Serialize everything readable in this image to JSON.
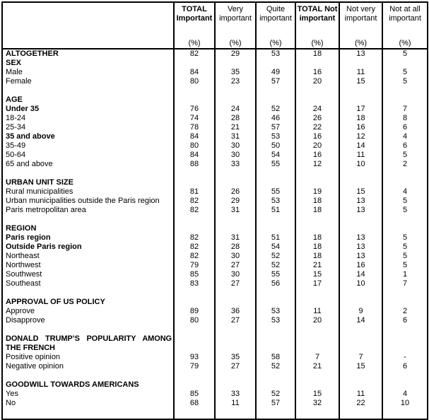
{
  "colors": {
    "border": "#000000",
    "text": "#000000",
    "background": "#ffffff"
  },
  "table": {
    "percent_label": "(%)",
    "columns": [
      {
        "label": "TOTAL Important",
        "bold": true
      },
      {
        "label": "Very important",
        "bold": false
      },
      {
        "label": "Quite important",
        "bold": false
      },
      {
        "label": "TOTAL Not important",
        "bold": true
      },
      {
        "label": "Not very important",
        "bold": false
      },
      {
        "label": "Not at all important",
        "bold": false
      }
    ],
    "rows": [
      {
        "label": "ALTOGETHER",
        "bold": true,
        "values": [
          82,
          29,
          53,
          18,
          13,
          5
        ]
      },
      {
        "label": "SEX",
        "bold": true,
        "values": null
      },
      {
        "label": "Male",
        "bold": false,
        "values": [
          84,
          35,
          49,
          16,
          11,
          5
        ]
      },
      {
        "label": "Female",
        "bold": false,
        "values": [
          80,
          23,
          57,
          20,
          15,
          5
        ]
      },
      {
        "blank": true
      },
      {
        "label": "AGE",
        "bold": true,
        "values": null
      },
      {
        "label": "Under 35",
        "bold": true,
        "values": [
          76,
          24,
          52,
          24,
          17,
          7
        ]
      },
      {
        "label": "18-24",
        "bold": false,
        "values": [
          74,
          28,
          46,
          26,
          18,
          8
        ]
      },
      {
        "label": "25-34",
        "bold": false,
        "values": [
          78,
          21,
          57,
          22,
          16,
          6
        ]
      },
      {
        "label": "35 and above",
        "bold": true,
        "values": [
          84,
          31,
          53,
          16,
          12,
          4
        ]
      },
      {
        "label": "35-49",
        "bold": false,
        "values": [
          80,
          30,
          50,
          20,
          14,
          6
        ]
      },
      {
        "label": "50-64",
        "bold": false,
        "values": [
          84,
          30,
          54,
          16,
          11,
          5
        ]
      },
      {
        "label": "65 and above",
        "bold": false,
        "values": [
          88,
          33,
          55,
          12,
          10,
          2
        ]
      },
      {
        "blank": true
      },
      {
        "label": "URBAN UNIT SIZE",
        "bold": true,
        "values": null
      },
      {
        "label": "Rural municipalities",
        "bold": false,
        "values": [
          81,
          26,
          55,
          19,
          15,
          4
        ]
      },
      {
        "label": "Urban municipalities outside the Paris region",
        "bold": false,
        "values": [
          82,
          29,
          53,
          18,
          13,
          5
        ]
      },
      {
        "label": "Paris metropolitan area",
        "bold": false,
        "values": [
          82,
          31,
          51,
          18,
          13,
          5
        ]
      },
      {
        "blank": true
      },
      {
        "label": "REGION",
        "bold": true,
        "values": null
      },
      {
        "label": "Paris region",
        "bold": true,
        "values": [
          82,
          31,
          51,
          18,
          13,
          5
        ]
      },
      {
        "label": "Outside Paris region",
        "bold": true,
        "values": [
          82,
          28,
          54,
          18,
          13,
          5
        ]
      },
      {
        "label": "Northeast",
        "bold": false,
        "values": [
          82,
          30,
          52,
          18,
          13,
          5
        ]
      },
      {
        "label": "Northwest",
        "bold": false,
        "values": [
          79,
          27,
          52,
          21,
          16,
          5
        ]
      },
      {
        "label": "Southwest",
        "bold": false,
        "values": [
          85,
          30,
          55,
          15,
          14,
          1
        ]
      },
      {
        "label": "Southeast",
        "bold": false,
        "values": [
          83,
          27,
          56,
          17,
          10,
          7
        ]
      },
      {
        "blank": true
      },
      {
        "label": "APPROVAL OF US POLICY",
        "bold": true,
        "values": null
      },
      {
        "label": "Approve",
        "bold": false,
        "values": [
          89,
          36,
          53,
          11,
          9,
          2
        ]
      },
      {
        "label": "Disapprove",
        "bold": false,
        "values": [
          80,
          27,
          53,
          20,
          14,
          6
        ]
      },
      {
        "blank": true
      },
      {
        "label": "DONALD TRUMP’S POPULARITY AMONG THE FRENCH",
        "bold": true,
        "values": null,
        "wrap": true
      },
      {
        "label": "Positive opinion",
        "bold": false,
        "values": [
          93,
          35,
          58,
          7,
          7,
          "-"
        ]
      },
      {
        "label": "Negative opinion",
        "bold": false,
        "values": [
          79,
          27,
          52,
          21,
          15,
          6
        ]
      },
      {
        "blank": true
      },
      {
        "label": "GOODWILL TOWARDS AMERICANS",
        "bold": true,
        "values": null
      },
      {
        "label": "Yes",
        "bold": false,
        "values": [
          85,
          33,
          52,
          15,
          11,
          4
        ]
      },
      {
        "label": "No",
        "bold": false,
        "values": [
          68,
          11,
          57,
          32,
          22,
          10
        ]
      },
      {
        "blank": true,
        "bottom": true
      }
    ]
  }
}
